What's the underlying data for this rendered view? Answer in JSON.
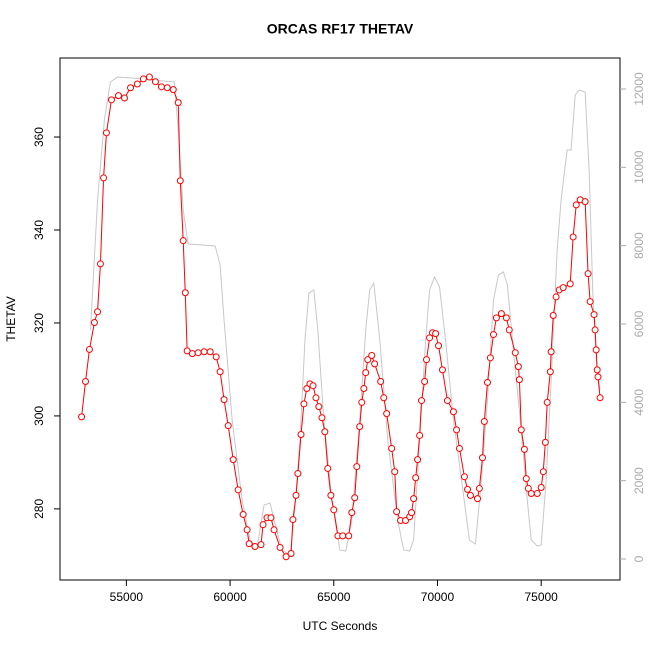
{
  "chart_data": {
    "type": "line",
    "title": "ORCAS RF17 THETAV",
    "xlabel": "UTC Seconds",
    "ylabel": "THETAV",
    "xlim": [
      51800,
      78800
    ],
    "xticks": [
      55000,
      60000,
      65000,
      70000,
      75000
    ],
    "ylim": [
      264.7,
      377
    ],
    "yticks": [
      280,
      300,
      320,
      340,
      360
    ],
    "y2lim": [
      -536,
      12791
    ],
    "y2ticks": [
      0,
      2000,
      4000,
      6000,
      8000,
      10000,
      12000
    ],
    "series": [
      {
        "color": "#ff0000",
        "markers": true,
        "x": [
          52840,
          53030,
          53220,
          53460,
          53610,
          53750,
          53900,
          54040,
          54280,
          54620,
          54910,
          55200,
          55530,
          55820,
          56110,
          56400,
          56690,
          56970,
          57260,
          57500,
          57600,
          57740,
          57840,
          57930,
          58180,
          58460,
          58750,
          59040,
          59330,
          59520,
          59710,
          59910,
          60150,
          60390,
          60630,
          60820,
          60920,
          61200,
          61490,
          61590,
          61780,
          61970,
          62120,
          62410,
          62700,
          62940,
          63030,
          63180,
          63270,
          63420,
          63560,
          63700,
          63850,
          64000,
          64140,
          64280,
          64430,
          64570,
          64710,
          64860,
          65000,
          65200,
          65430,
          65720,
          65870,
          66010,
          66110,
          66250,
          66350,
          66450,
          66540,
          66640,
          66830,
          66970,
          67260,
          67410,
          67550,
          67790,
          67940,
          68030,
          68220,
          68460,
          68660,
          68750,
          68850,
          68950,
          69040,
          69140,
          69230,
          69380,
          69470,
          69620,
          69760,
          69910,
          70050,
          70240,
          70480,
          70770,
          70920,
          71060,
          71300,
          71450,
          71590,
          71930,
          72020,
          72170,
          72260,
          72410,
          72550,
          72700,
          72840,
          73080,
          73320,
          73460,
          73750,
          73900,
          73950,
          74040,
          74190,
          74280,
          74380,
          74520,
          74810,
          75000,
          75100,
          75200,
          75290,
          75440,
          75480,
          75580,
          75720,
          75870,
          76060,
          76400,
          76540,
          76690,
          76880,
          77120,
          77260,
          77360,
          77550,
          77600,
          77650,
          77700,
          77740,
          77840
        ],
        "values": [
          299.8,
          307.4,
          314.3,
          320.1,
          322.4,
          332.7,
          351.2,
          360.9,
          368.0,
          368.9,
          368.4,
          370.6,
          371.4,
          372.5,
          372.9,
          371.9,
          370.8,
          370.6,
          370.2,
          367.4,
          350.6,
          337.7,
          326.5,
          314.0,
          313.4,
          313.6,
          313.8,
          313.8,
          312.7,
          309.5,
          303.5,
          297.9,
          290.6,
          284.1,
          278.8,
          275.5,
          272.5,
          271.9,
          272.3,
          276.6,
          278.1,
          278.1,
          275.5,
          271.7,
          269.7,
          270.4,
          277.7,
          282.9,
          287.6,
          296.0,
          302.6,
          305.9,
          306.9,
          306.5,
          303.9,
          302.0,
          299.6,
          296.6,
          288.7,
          282.9,
          279.8,
          274.2,
          274.2,
          274.2,
          279.2,
          282.4,
          289.1,
          297.7,
          302.9,
          305.9,
          309.3,
          312.1,
          313.0,
          311.2,
          307.4,
          303.9,
          300.5,
          293.0,
          288.0,
          279.4,
          277.5,
          277.5,
          278.3,
          279.2,
          282.2,
          286.7,
          290.6,
          295.8,
          303.3,
          307.4,
          312.1,
          316.8,
          317.9,
          317.7,
          315.1,
          309.9,
          303.3,
          300.9,
          297.0,
          293.0,
          286.9,
          284.2,
          282.9,
          282.2,
          284.4,
          291.0,
          298.8,
          307.2,
          312.5,
          317.5,
          321.1,
          322.0,
          321.1,
          318.5,
          313.6,
          310.6,
          307.8,
          297.0,
          292.8,
          286.5,
          284.4,
          283.3,
          283.3,
          284.6,
          288.0,
          294.3,
          302.9,
          309.5,
          313.8,
          321.6,
          325.6,
          327.1,
          327.6,
          328.4,
          338.5,
          345.4,
          346.5,
          346.1,
          330.6,
          324.6,
          321.8,
          318.5,
          314.2,
          309.9,
          308.4,
          303.9
        ]
      },
      {
        "color": "#c8c8c8",
        "axis": "y2",
        "markers": false,
        "x": [
          53270,
          53610,
          53940,
          54230,
          54570,
          55290,
          56250,
          57310,
          57500,
          57740,
          57980,
          58660,
          59280,
          59520,
          59710,
          60100,
          60580,
          60960,
          61300,
          61640,
          61930,
          62120,
          62500,
          62890,
          63080,
          63370,
          63610,
          63800,
          64040,
          64230,
          64520,
          64910,
          65290,
          65580,
          65870,
          66250,
          66540,
          66730,
          66930,
          67220,
          67600,
          68080,
          68370,
          68660,
          68850,
          69140,
          69430,
          69620,
          69860,
          70100,
          70390,
          70770,
          71160,
          71540,
          71830,
          72120,
          72410,
          72700,
          72940,
          73180,
          73370,
          73660,
          74040,
          74330,
          74520,
          74810,
          75000,
          75240,
          75480,
          75770,
          75960,
          76250,
          76440,
          76640,
          76830,
          77120,
          77310,
          77500,
          77690,
          77840
        ],
        "values": [
          5850,
          9165,
          11208,
          12178,
          12305,
          12280,
          12229,
          12178,
          10952,
          8910,
          8042,
          8016,
          7991,
          7506,
          6102,
          3549,
          1506,
          485,
          281,
          1379,
          1430,
          996,
          230,
          102,
          996,
          3038,
          5591,
          6791,
          6868,
          5846,
          3549,
          1506,
          230,
          204,
          996,
          3549,
          5846,
          6868,
          7046,
          5591,
          3038,
          996,
          230,
          204,
          485,
          3038,
          5591,
          6868,
          7199,
          6944,
          5591,
          3549,
          2017,
          485,
          383,
          2017,
          4059,
          6612,
          7251,
          7327,
          6995,
          5336,
          3293,
          1506,
          485,
          332,
          357,
          2017,
          4570,
          7889,
          9165,
          10442,
          10442,
          11846,
          11974,
          11923,
          9931,
          6612,
          4825,
          4315
        ]
      }
    ]
  }
}
